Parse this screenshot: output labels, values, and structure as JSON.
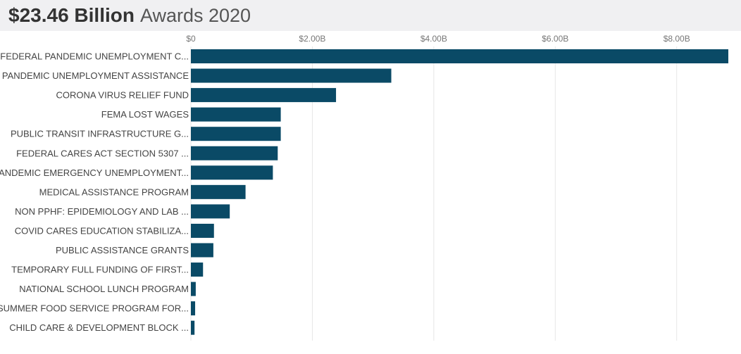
{
  "header": {
    "amount": "$23.46 Billion",
    "subtitle": "Awards 2020"
  },
  "colors": {
    "bar": "#0a4a66",
    "grid": "#e6e6e6",
    "header_bg": "#f0f0f2"
  },
  "chart_data": {
    "type": "bar",
    "orientation": "horizontal",
    "title": "$23.46 Billion Awards 2020",
    "xlabel": "",
    "ylabel": "",
    "xlim": [
      0,
      8.85
    ],
    "x_ticks": [
      0,
      2,
      4,
      6,
      8
    ],
    "x_tick_labels": [
      "$0",
      "$2.00B",
      "$4.00B",
      "$6.00B",
      "$8.00B"
    ],
    "grid": true,
    "categories": [
      "FEDERAL PANDEMIC UNEMPLOYMENT C...",
      "PANDEMIC UNEMPLOYMENT ASSISTANCE",
      "CORONA VIRUS RELIEF FUND",
      "FEMA LOST WAGES",
      "PUBLIC TRANSIT INFRASTRUCTURE G...",
      "FEDERAL CARES ACT SECTION 5307 ...",
      "PANDEMIC EMERGENCY UNEMPLOYMENT...",
      "MEDICAL ASSISTANCE PROGRAM",
      "NON PPHF: EPIDEMIOLOGY AND LAB ...",
      "COVID CARES EDUCATION STABILIZA...",
      "PUBLIC ASSISTANCE GRANTS",
      "TEMPORARY FULL FUNDING OF FIRST...",
      "NATIONAL SCHOOL LUNCH PROGRAM",
      "SUMMER FOOD SERVICE PROGRAM FOR...",
      "CHILD CARE & DEVELOPMENT BLOCK ..."
    ],
    "values": [
      8.85,
      3.3,
      2.39,
      1.48,
      1.48,
      1.43,
      1.35,
      0.9,
      0.64,
      0.38,
      0.37,
      0.2,
      0.08,
      0.07,
      0.06
    ],
    "unit": "billion USD"
  }
}
